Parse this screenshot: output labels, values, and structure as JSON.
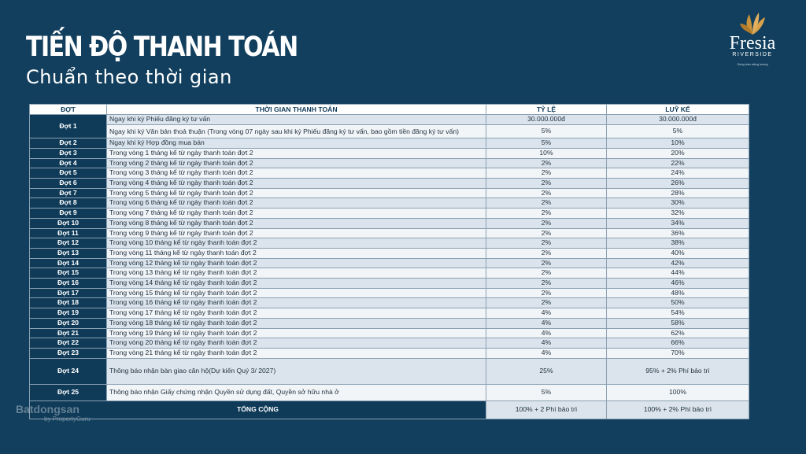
{
  "title": "TIẾN ĐỘ THANH TOÁN",
  "subtitle": "Chuẩn theo thời gian",
  "logo": {
    "name": "Fresia",
    "sub": "RIVERSIDE",
    "slogan": "Sống tràn năng lượng",
    "accent": "#c8923a"
  },
  "headers": [
    "ĐỢT",
    "THỜI GIAN THANH TOÁN",
    "TỶ LỆ",
    "LUỸ KẾ"
  ],
  "first": {
    "phase": "Đợt 1",
    "rows": [
      {
        "time": "Ngay khi ký Phiếu đăng ký tư vấn",
        "rate": "30.000.000đ",
        "cum": "30.000.000đ"
      },
      {
        "time": "Ngay khi ký Văn bản thoả thuận (Trong vòng 07 ngày sau khi ký Phiếu đăng ký tư vấn, bao gồm tiền đăng ký tư vấn)",
        "rate": "5%",
        "cum": "5%"
      }
    ]
  },
  "rows": [
    {
      "phase": "Đợt 2",
      "time": "Ngay khi ký Hợp đồng mua bán",
      "rate": "5%",
      "cum": "10%"
    },
    {
      "phase": "Đợt 3",
      "time": "Trong vòng 1 tháng kể từ ngày thanh toán đợt 2",
      "rate": "10%",
      "cum": "20%"
    },
    {
      "phase": "Đợt 4",
      "time": "Trong vòng 2 tháng kể từ ngày thanh toán đợt 2",
      "rate": "2%",
      "cum": "22%"
    },
    {
      "phase": "Đợt 5",
      "time": "Trong vòng 3 tháng kể từ ngày thanh toán đợt 2",
      "rate": "2%",
      "cum": "24%"
    },
    {
      "phase": "Đợt 6",
      "time": "Trong vòng 4 tháng kể từ ngày thanh toán đợt 2",
      "rate": "2%",
      "cum": "26%"
    },
    {
      "phase": "Đợt 7",
      "time": "Trong vòng 5 tháng kể từ ngày thanh toán đợt 2",
      "rate": "2%",
      "cum": "28%"
    },
    {
      "phase": "Đợt 8",
      "time": "Trong vòng 6 tháng kể từ ngày thanh toán đợt 2",
      "rate": "2%",
      "cum": "30%"
    },
    {
      "phase": "Đợt 9",
      "time": "Trong vòng 7 tháng kể từ ngày thanh toán đợt 2",
      "rate": "2%",
      "cum": "32%"
    },
    {
      "phase": "Đợt 10",
      "time": "Trong vòng 8 tháng kể từ ngày thanh toán đợt 2",
      "rate": "2%",
      "cum": "34%"
    },
    {
      "phase": "Đợt 11",
      "time": "Trong vòng 9 tháng kể từ ngày thanh toán đợt 2",
      "rate": "2%",
      "cum": "36%"
    },
    {
      "phase": "Đợt 12",
      "time": "Trong vòng 10 tháng kể từ ngày thanh toán đợt 2",
      "rate": "2%",
      "cum": "38%"
    },
    {
      "phase": "Đợt 13",
      "time": "Trong vòng 11 tháng kể từ ngày thanh toán đợt 2",
      "rate": "2%",
      "cum": "40%"
    },
    {
      "phase": "Đợt 14",
      "time": "Trong vòng 12 tháng kể từ ngày thanh toán đợt 2",
      "rate": "2%",
      "cum": "42%"
    },
    {
      "phase": "Đợt 15",
      "time": "Trong vòng 13 tháng kể từ ngày thanh toán đợt 2",
      "rate": "2%",
      "cum": "44%"
    },
    {
      "phase": "Đợt 16",
      "time": "Trong vòng 14 tháng kể từ ngày thanh toán đợt 2",
      "rate": "2%",
      "cum": "46%"
    },
    {
      "phase": "Đợt 17",
      "time": "Trong vòng 15 tháng kể từ ngày thanh toán đợt 2",
      "rate": "2%",
      "cum": "48%"
    },
    {
      "phase": "Đợt 18",
      "time": "Trong vòng 16 tháng kể từ ngày thanh toán đợt 2",
      "rate": "2%",
      "cum": "50%"
    },
    {
      "phase": "Đợt 19",
      "time": "Trong vòng 17 tháng kể từ ngày thanh toán đợt 2",
      "rate": "4%",
      "cum": "54%"
    },
    {
      "phase": "Đợt 20",
      "time": "Trong vòng 18 tháng kể từ ngày thanh toán đợt 2",
      "rate": "4%",
      "cum": "58%"
    },
    {
      "phase": "Đợt 21",
      "time": "Trong vòng 19 tháng kể từ ngày thanh toán đợt 2",
      "rate": "4%",
      "cum": "62%"
    },
    {
      "phase": "Đợt 22",
      "time": "Trong vòng 20 tháng kể từ ngày thanh toán đợt 2",
      "rate": "4%",
      "cum": "66%"
    },
    {
      "phase": "Đợt 23",
      "time": "Trong vòng 21 tháng kể từ ngày thanh toán đợt 2",
      "rate": "4%",
      "cum": "70%"
    }
  ],
  "row24": {
    "phase": "Đợt 24",
    "time": "Thông báo nhận bàn giao căn hộ(Dự kiến Quý 3/ 2027)",
    "rate": "25%",
    "cum": "95% + 2% Phí bảo trì"
  },
  "row25": {
    "phase": "Đợt 25",
    "time": "Thông báo nhận Giấy chứng nhận Quyền sử dụng đất, Quyền sở hữu nhà ở",
    "rate": "5%",
    "cum": "100%"
  },
  "total": {
    "label": "TỔNG CỘNG",
    "rate": "100% + 2 Phí bảo trì",
    "cum": "100% + 2% Phí bảo trì"
  },
  "watermark": {
    "brand": "Batdongsan",
    "by": "by PropertyGuru"
  }
}
